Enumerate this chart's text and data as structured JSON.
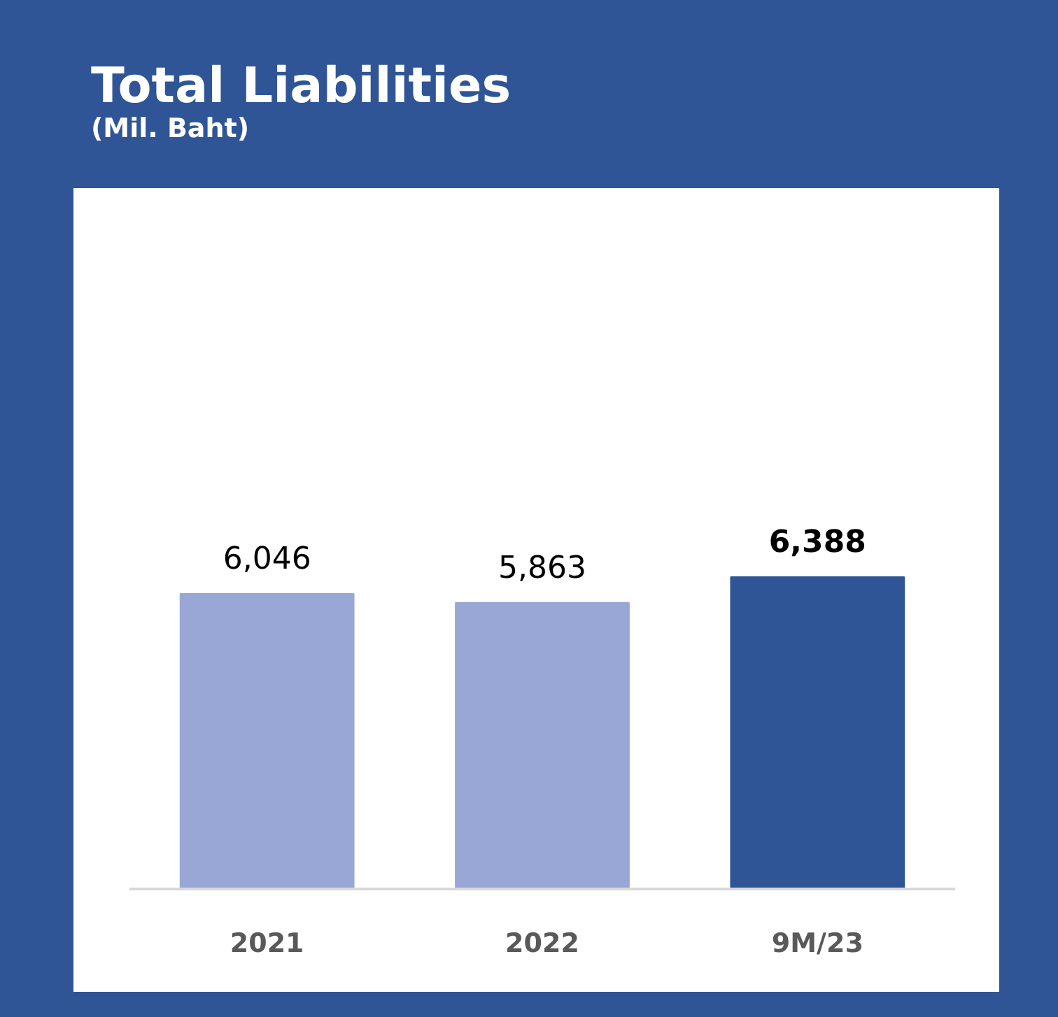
{
  "chart_data": {
    "type": "bar",
    "title": "Total Liabilities",
    "subtitle": "(Mil. Baht)",
    "categories": [
      "2021",
      "2022",
      "9M/23"
    ],
    "values": [
      6046,
      5863,
      6388
    ],
    "value_labels": [
      "6,046",
      "5,863",
      "6,388"
    ],
    "colors": [
      "#99a7d6",
      "#99a7d6",
      "#2f5597"
    ]
  }
}
